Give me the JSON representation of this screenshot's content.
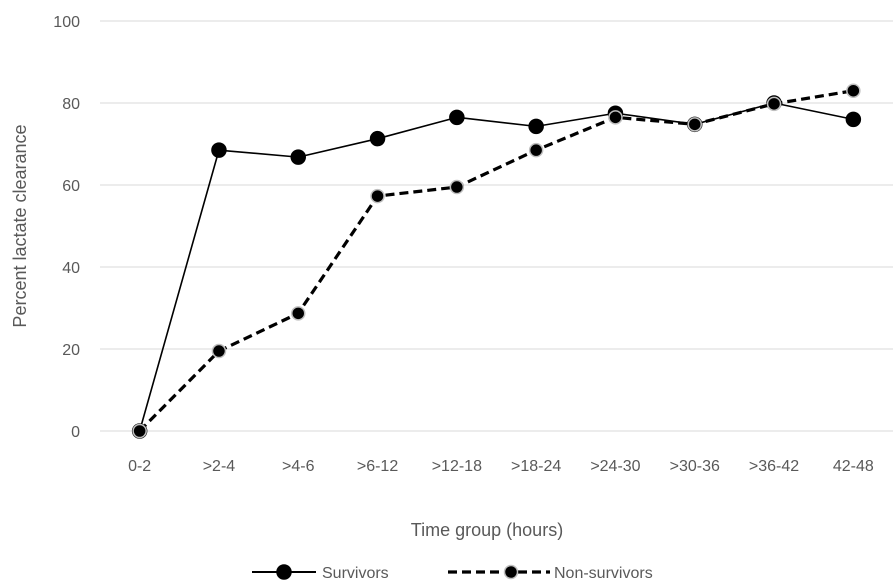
{
  "chart_data": {
    "type": "line",
    "categories": [
      "0-2",
      ">2-4",
      ">4-6",
      ">6-12",
      ">12-18",
      ">18-24",
      ">24-30",
      ">30-36",
      ">36-42",
      "42-48"
    ],
    "series": [
      {
        "name": "Survivors",
        "values": [
          0,
          68.5,
          66.8,
          71.3,
          76.5,
          74.3,
          77.5,
          74.8,
          80.0,
          76.0
        ],
        "line_style": "solid",
        "color": "#000000"
      },
      {
        "name": "Non-survivors",
        "values": [
          0,
          19.5,
          28.7,
          57.3,
          59.5,
          68.5,
          76.5,
          74.8,
          79.8,
          83.0
        ],
        "line_style": "dashed",
        "color": "#000000"
      }
    ],
    "xlabel": "Time group (hours)",
    "ylabel": "Percent lactate clearance",
    "ylim": [
      0,
      100
    ],
    "yticks": [
      0,
      20,
      40,
      60,
      80,
      100
    ],
    "grid": true,
    "legend_position": "bottom"
  }
}
